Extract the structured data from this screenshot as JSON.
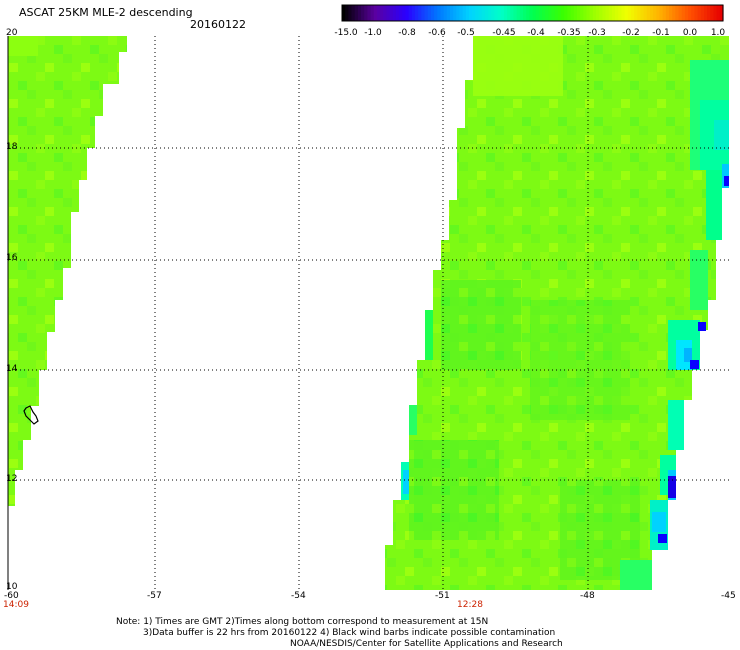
{
  "header": {
    "title": "ASCAT 25KM MLE-2 descending",
    "date": "20160122"
  },
  "colorbar": {
    "labels": [
      "-15.0",
      "-1.0",
      "-0.8",
      "-0.6",
      "-0.5",
      "-0.45",
      "-0.4",
      "-0.35",
      "-0.3",
      "-0.2",
      "-0.1",
      "0.0",
      "1.0"
    ],
    "colors": [
      "#000000",
      "#5a00a0",
      "#2a00ff",
      "#0078ff",
      "#00d2ff",
      "#00ffc8",
      "#00ff50",
      "#3cff00",
      "#a0ff00",
      "#f0ff00",
      "#ffb400",
      "#ff5000",
      "#e60000"
    ]
  },
  "map": {
    "lat_labels": [
      "20",
      "18",
      "16",
      "14",
      "12",
      "10"
    ],
    "lon_labels": [
      "-60",
      "-57",
      "-54",
      "-51",
      "-48",
      "-45"
    ],
    "time_labels": [
      "14:09",
      "12:28"
    ],
    "swath_colors": {
      "main": "#7dfa14",
      "light": "#96ff10",
      "greener": "#3cff28",
      "teal": "#00ff8c",
      "cyan": "#00e6ff",
      "blue": "#0a00ff"
    }
  },
  "notes": {
    "line1": "Note: 1) Times are GMT 2)Times along bottom correspond to measurement at 15N",
    "line2": "3)Data buffer is 22 hrs from 20160122 4) Black wind barbs indicate possible contamination",
    "line3": "NOAA/NESDIS/Center for Satellite Applications and Research"
  }
}
